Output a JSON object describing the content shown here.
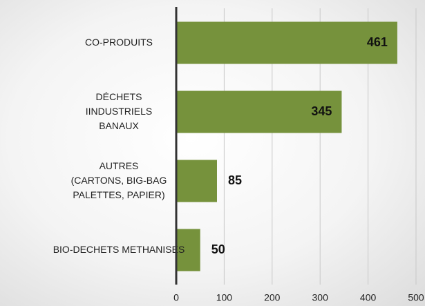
{
  "chart_data": {
    "type": "bar",
    "orientation": "horizontal",
    "categories": [
      "CO-PRODUITS",
      "DÉCHETS\nIINDUSTRIELS\nBANAUX",
      "AUTRES\n(CARTONS, BIG-BAG\nPALETTES, PAPIER)",
      "BIO-DECHETS METHANISES"
    ],
    "values": [
      461,
      345,
      85,
      50
    ],
    "color": "#76923c",
    "xlim": [
      0,
      500
    ],
    "xticks": [
      0,
      100,
      200,
      300,
      400,
      500
    ],
    "grid": true
  }
}
